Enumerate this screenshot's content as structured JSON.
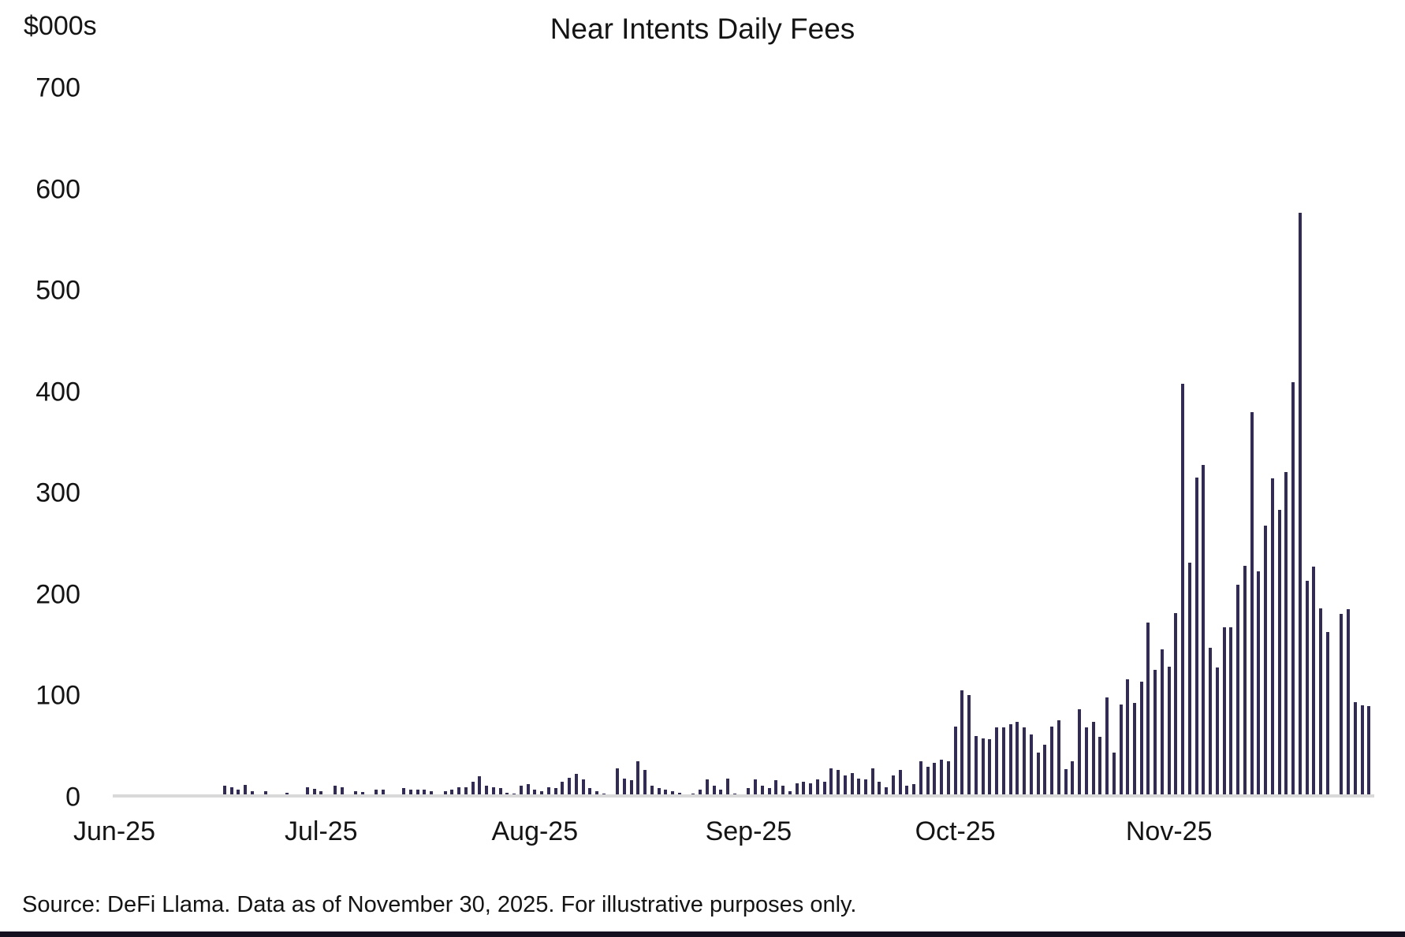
{
  "title": "Near Intents Daily Fees",
  "y_axis": {
    "unit_label": "$000s",
    "ticks": [
      {
        "label": "700",
        "value": 700
      },
      {
        "label": "600",
        "value": 600
      },
      {
        "label": "500",
        "value": 500
      },
      {
        "label": "400",
        "value": 400
      },
      {
        "label": "300",
        "value": 300
      },
      {
        "label": "200",
        "value": 200
      },
      {
        "label": "100",
        "value": 100
      },
      {
        "label": "0",
        "value": 0
      }
    ]
  },
  "x_axis": {
    "ticks": [
      {
        "label": "Jun-25",
        "day_index": 0
      },
      {
        "label": "Jul-25",
        "day_index": 30
      },
      {
        "label": "Aug-25",
        "day_index": 61
      },
      {
        "label": "Sep-25",
        "day_index": 92
      },
      {
        "label": "Oct-25",
        "day_index": 122
      },
      {
        "label": "Nov-25",
        "day_index": 153
      }
    ]
  },
  "footer": {
    "source_text": "Source: DeFi Llama. Data as of November 30, 2025. For illustrative purposes only."
  },
  "colors": {
    "bar": "#322b54",
    "axis_line": "#d9d9d9",
    "text": "#141414",
    "bottom_strip": "#14101f"
  },
  "chart_data": {
    "type": "bar",
    "title": "Near Intents Daily Fees",
    "xlabel": "",
    "ylabel": "$000s",
    "ylim": [
      0,
      700
    ],
    "grid": false,
    "legend": false,
    "x_unit": "day",
    "x_range": [
      "2025-06-01",
      "2025-11-30"
    ],
    "x_tick_labels": [
      "Jun-25",
      "Jul-25",
      "Aug-25",
      "Sep-25",
      "Oct-25",
      "Nov-25"
    ],
    "values": [
      0,
      0,
      0,
      0,
      0,
      0,
      0,
      0,
      0,
      0,
      2,
      2.5,
      1.5,
      2,
      1.5,
      1.5,
      12,
      10,
      8,
      12.5,
      6,
      3,
      6.5,
      2,
      2.5,
      5,
      1.5,
      1,
      10.5,
      8.5,
      6.5,
      1,
      11.5,
      10.5,
      2,
      6.5,
      5.5,
      2,
      8,
      7.5,
      2.5,
      1,
      9,
      8,
      7.5,
      8,
      6.5,
      2,
      6.5,
      8,
      10,
      10.5,
      15.5,
      21,
      12,
      10.5,
      9,
      5,
      4,
      11.5,
      13,
      8,
      6.5,
      10.5,
      9,
      15.5,
      19.5,
      23.5,
      18,
      9,
      6.5,
      4,
      2.5,
      28.5,
      19,
      17,
      36,
      27,
      12,
      9,
      8,
      6.5,
      5,
      2.5,
      4,
      8,
      18,
      12,
      8,
      19,
      4,
      2.5,
      9,
      18,
      12,
      9,
      17,
      12,
      6.5,
      14,
      15.5,
      14,
      18,
      15.5,
      28.5,
      27,
      22,
      24.5,
      19,
      18,
      28.5,
      15.5,
      10,
      22,
      27,
      12,
      13,
      36,
      30,
      34,
      37.5,
      36,
      70,
      106,
      101,
      61,
      58,
      57.5,
      69.5,
      69.5,
      72,
      74.5,
      69,
      62,
      44,
      52,
      70,
      76,
      28,
      36,
      87,
      69,
      75,
      60,
      99,
      44,
      92,
      117,
      93,
      114,
      173,
      126,
      146,
      129,
      182,
      408,
      232,
      316,
      328,
      148,
      128,
      168,
      168,
      210,
      229,
      380,
      223,
      268,
      315,
      284,
      321,
      410,
      577,
      214,
      228,
      187,
      163,
      2,
      181,
      186,
      94,
      91,
      90
    ]
  }
}
